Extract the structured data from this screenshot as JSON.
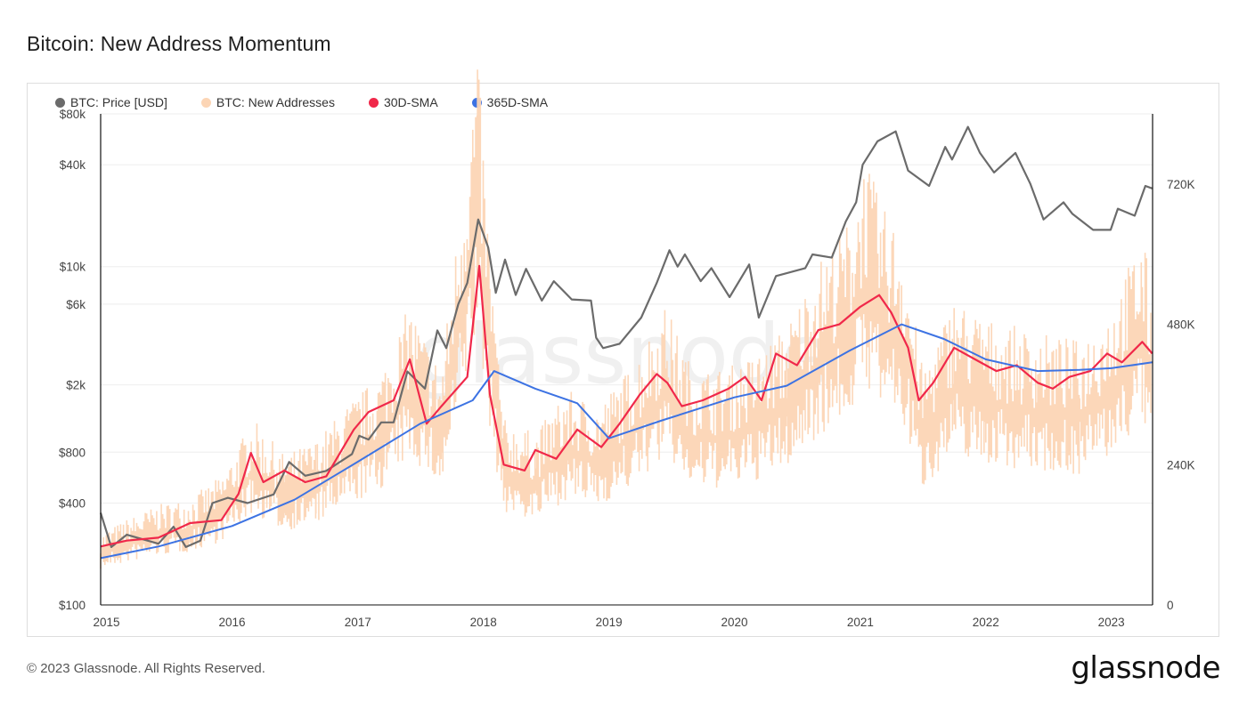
{
  "title": "Bitcoin: New Address Momentum",
  "footer": "© 2023 Glassnode. All Rights Reserved.",
  "brand": "glassnode",
  "watermark": "glassnode",
  "colors": {
    "price": "#6b6b6b",
    "new_addresses": "#fcd5b5",
    "sma30": "#f0284a",
    "sma365": "#3d73e3"
  },
  "legend": [
    {
      "label": "BTC: Price [USD]",
      "color": "#6b6b6b"
    },
    {
      "label": "BTC: New Addresses",
      "color": "#fcd5b5"
    },
    {
      "label": "30D-SMA",
      "color": "#f0284a"
    },
    {
      "label": "365D-SMA",
      "color": "#3d73e3"
    }
  ],
  "chart_data": {
    "type": "line",
    "x_range": [
      "2014-12-15",
      "2023-05-01"
    ],
    "x_ticks": [
      "2015",
      "2016",
      "2017",
      "2018",
      "2019",
      "2020",
      "2021",
      "2022",
      "2023"
    ],
    "y_left": {
      "scale": "log",
      "range": [
        100,
        80000
      ],
      "ticks": [
        "$100",
        "$400",
        "$800",
        "$2k",
        "$6k",
        "$10k",
        "$40k",
        "$80k"
      ],
      "tick_values": [
        100,
        400,
        800,
        2000,
        6000,
        10000,
        40000,
        80000
      ]
    },
    "y_right": {
      "scale": "linear",
      "range": [
        0,
        840000
      ],
      "ticks": [
        "0",
        "240K",
        "480K",
        "720K"
      ],
      "tick_values": [
        0,
        240000,
        480000,
        720000
      ]
    },
    "series": [
      {
        "name": "BTC: Price [USD]",
        "axis": "left",
        "kind": "line",
        "points": [
          [
            "2014-12-15",
            350
          ],
          [
            "2015-01-15",
            220
          ],
          [
            "2015-03-01",
            260
          ],
          [
            "2015-06-01",
            230
          ],
          [
            "2015-07-15",
            290
          ],
          [
            "2015-08-20",
            220
          ],
          [
            "2015-10-01",
            240
          ],
          [
            "2015-11-05",
            400
          ],
          [
            "2015-12-20",
            430
          ],
          [
            "2016-02-15",
            400
          ],
          [
            "2016-05-01",
            450
          ],
          [
            "2016-06-15",
            700
          ],
          [
            "2016-08-01",
            580
          ],
          [
            "2016-10-01",
            620
          ],
          [
            "2016-12-15",
            780
          ],
          [
            "2017-01-05",
            1000
          ],
          [
            "2017-02-01",
            950
          ],
          [
            "2017-03-10",
            1200
          ],
          [
            "2017-04-15",
            1200
          ],
          [
            "2017-05-25",
            2400
          ],
          [
            "2017-07-15",
            1900
          ],
          [
            "2017-08-20",
            4200
          ],
          [
            "2017-09-15",
            3300
          ],
          [
            "2017-10-20",
            6000
          ],
          [
            "2017-11-15",
            8000
          ],
          [
            "2017-12-17",
            19000
          ],
          [
            "2018-01-15",
            13000
          ],
          [
            "2018-02-06",
            7000
          ],
          [
            "2018-03-05",
            11000
          ],
          [
            "2018-04-05",
            6800
          ],
          [
            "2018-05-05",
            9700
          ],
          [
            "2018-06-20",
            6300
          ],
          [
            "2018-07-25",
            8200
          ],
          [
            "2018-09-15",
            6400
          ],
          [
            "2018-11-10",
            6300
          ],
          [
            "2018-11-25",
            3800
          ],
          [
            "2018-12-15",
            3300
          ],
          [
            "2019-02-01",
            3500
          ],
          [
            "2019-04-05",
            5000
          ],
          [
            "2019-05-20",
            8000
          ],
          [
            "2019-06-26",
            12500
          ],
          [
            "2019-07-20",
            10000
          ],
          [
            "2019-08-10",
            11800
          ],
          [
            "2019-09-25",
            8200
          ],
          [
            "2019-10-26",
            9800
          ],
          [
            "2019-12-18",
            6600
          ],
          [
            "2020-02-13",
            10300
          ],
          [
            "2020-03-12",
            5000
          ],
          [
            "2020-05-01",
            8800
          ],
          [
            "2020-07-25",
            9800
          ],
          [
            "2020-08-15",
            11800
          ],
          [
            "2020-10-10",
            11300
          ],
          [
            "2020-11-20",
            18500
          ],
          [
            "2020-12-20",
            24000
          ],
          [
            "2021-01-08",
            40000
          ],
          [
            "2021-02-20",
            55000
          ],
          [
            "2021-04-14",
            63000
          ],
          [
            "2021-05-20",
            37000
          ],
          [
            "2021-07-20",
            30000
          ],
          [
            "2021-09-05",
            51000
          ],
          [
            "2021-09-25",
            43000
          ],
          [
            "2021-11-10",
            67000
          ],
          [
            "2021-12-15",
            47000
          ],
          [
            "2022-01-25",
            36000
          ],
          [
            "2022-03-28",
            47000
          ],
          [
            "2022-05-10",
            31000
          ],
          [
            "2022-06-18",
            19000
          ],
          [
            "2022-08-15",
            24000
          ],
          [
            "2022-09-10",
            20500
          ],
          [
            "2022-11-09",
            16500
          ],
          [
            "2022-12-30",
            16500
          ],
          [
            "2023-01-20",
            22000
          ],
          [
            "2023-03-10",
            20000
          ],
          [
            "2023-04-10",
            30000
          ],
          [
            "2023-04-30",
            29000
          ]
        ]
      },
      {
        "name": "BTC: New Addresses",
        "axis": "right",
        "kind": "area",
        "points": [
          [
            "2014-12-15",
            100000
          ],
          [
            "2015-03-01",
            120000
          ],
          [
            "2015-06-01",
            140000
          ],
          [
            "2015-09-01",
            150000
          ],
          [
            "2015-12-01",
            180000
          ],
          [
            "2016-03-01",
            260000
          ],
          [
            "2016-06-01",
            210000
          ],
          [
            "2016-09-01",
            230000
          ],
          [
            "2016-12-01",
            280000
          ],
          [
            "2017-03-01",
            320000
          ],
          [
            "2017-06-01",
            420000
          ],
          [
            "2017-09-01",
            330000
          ],
          [
            "2017-12-15",
            770000
          ],
          [
            "2018-01-20",
            500000
          ],
          [
            "2018-03-01",
            260000
          ],
          [
            "2018-06-01",
            240000
          ],
          [
            "2018-09-01",
            300000
          ],
          [
            "2018-12-01",
            280000
          ],
          [
            "2019-03-01",
            330000
          ],
          [
            "2019-06-15",
            420000
          ],
          [
            "2019-09-01",
            330000
          ],
          [
            "2019-12-01",
            330000
          ],
          [
            "2020-03-01",
            350000
          ],
          [
            "2020-06-01",
            390000
          ],
          [
            "2020-09-01",
            480000
          ],
          [
            "2020-12-01",
            540000
          ],
          [
            "2021-01-15",
            630000
          ],
          [
            "2021-03-01",
            560000
          ],
          [
            "2021-05-01",
            520000
          ],
          [
            "2021-07-01",
            330000
          ],
          [
            "2021-10-01",
            430000
          ],
          [
            "2022-01-01",
            400000
          ],
          [
            "2022-06-01",
            380000
          ],
          [
            "2022-10-01",
            370000
          ],
          [
            "2023-01-01",
            420000
          ],
          [
            "2023-04-01",
            520000
          ],
          [
            "2023-04-30",
            440000
          ]
        ]
      },
      {
        "name": "30D-SMA",
        "axis": "right",
        "kind": "line",
        "points": [
          [
            "2014-12-15",
            100000
          ],
          [
            "2015-03-01",
            110000
          ],
          [
            "2015-06-01",
            115000
          ],
          [
            "2015-09-01",
            140000
          ],
          [
            "2015-12-01",
            145000
          ],
          [
            "2016-01-20",
            190000
          ],
          [
            "2016-02-25",
            260000
          ],
          [
            "2016-04-01",
            210000
          ],
          [
            "2016-06-01",
            230000
          ],
          [
            "2016-08-01",
            210000
          ],
          [
            "2016-10-01",
            220000
          ],
          [
            "2016-12-20",
            300000
          ],
          [
            "2017-02-01",
            330000
          ],
          [
            "2017-04-15",
            350000
          ],
          [
            "2017-06-01",
            420000
          ],
          [
            "2017-07-20",
            310000
          ],
          [
            "2017-09-01",
            340000
          ],
          [
            "2017-11-15",
            390000
          ],
          [
            "2017-12-20",
            580000
          ],
          [
            "2018-01-20",
            360000
          ],
          [
            "2018-03-01",
            240000
          ],
          [
            "2018-05-01",
            230000
          ],
          [
            "2018-06-01",
            265000
          ],
          [
            "2018-08-01",
            250000
          ],
          [
            "2018-10-01",
            300000
          ],
          [
            "2018-12-10",
            270000
          ],
          [
            "2019-02-01",
            310000
          ],
          [
            "2019-04-01",
            360000
          ],
          [
            "2019-05-20",
            395000
          ],
          [
            "2019-06-20",
            380000
          ],
          [
            "2019-08-01",
            340000
          ],
          [
            "2019-10-01",
            350000
          ],
          [
            "2019-12-15",
            370000
          ],
          [
            "2020-02-01",
            390000
          ],
          [
            "2020-03-20",
            350000
          ],
          [
            "2020-05-01",
            430000
          ],
          [
            "2020-07-01",
            410000
          ],
          [
            "2020-09-01",
            470000
          ],
          [
            "2020-11-01",
            480000
          ],
          [
            "2021-01-01",
            510000
          ],
          [
            "2021-02-25",
            530000
          ],
          [
            "2021-04-01",
            500000
          ],
          [
            "2021-05-20",
            440000
          ],
          [
            "2021-06-20",
            350000
          ],
          [
            "2021-08-01",
            380000
          ],
          [
            "2021-10-01",
            440000
          ],
          [
            "2021-12-01",
            420000
          ],
          [
            "2022-02-01",
            400000
          ],
          [
            "2022-04-01",
            410000
          ],
          [
            "2022-06-01",
            380000
          ],
          [
            "2022-07-15",
            370000
          ],
          [
            "2022-09-01",
            390000
          ],
          [
            "2022-11-01",
            400000
          ],
          [
            "2022-12-20",
            430000
          ],
          [
            "2023-02-01",
            415000
          ],
          [
            "2023-04-01",
            450000
          ],
          [
            "2023-04-30",
            430000
          ]
        ]
      },
      {
        "name": "365D-SMA",
        "axis": "right",
        "kind": "line",
        "points": [
          [
            "2014-12-15",
            80000
          ],
          [
            "2015-06-01",
            100000
          ],
          [
            "2016-01-01",
            135000
          ],
          [
            "2016-07-01",
            180000
          ],
          [
            "2017-01-01",
            245000
          ],
          [
            "2017-07-01",
            310000
          ],
          [
            "2017-12-01",
            350000
          ],
          [
            "2018-02-01",
            400000
          ],
          [
            "2018-06-01",
            370000
          ],
          [
            "2018-10-01",
            345000
          ],
          [
            "2019-01-01",
            285000
          ],
          [
            "2019-06-01",
            315000
          ],
          [
            "2020-01-01",
            355000
          ],
          [
            "2020-06-01",
            375000
          ],
          [
            "2020-12-01",
            435000
          ],
          [
            "2021-05-01",
            480000
          ],
          [
            "2021-09-01",
            455000
          ],
          [
            "2022-01-01",
            420000
          ],
          [
            "2022-06-01",
            400000
          ],
          [
            "2022-10-01",
            402000
          ],
          [
            "2023-01-01",
            405000
          ],
          [
            "2023-04-30",
            415000
          ]
        ]
      }
    ]
  }
}
